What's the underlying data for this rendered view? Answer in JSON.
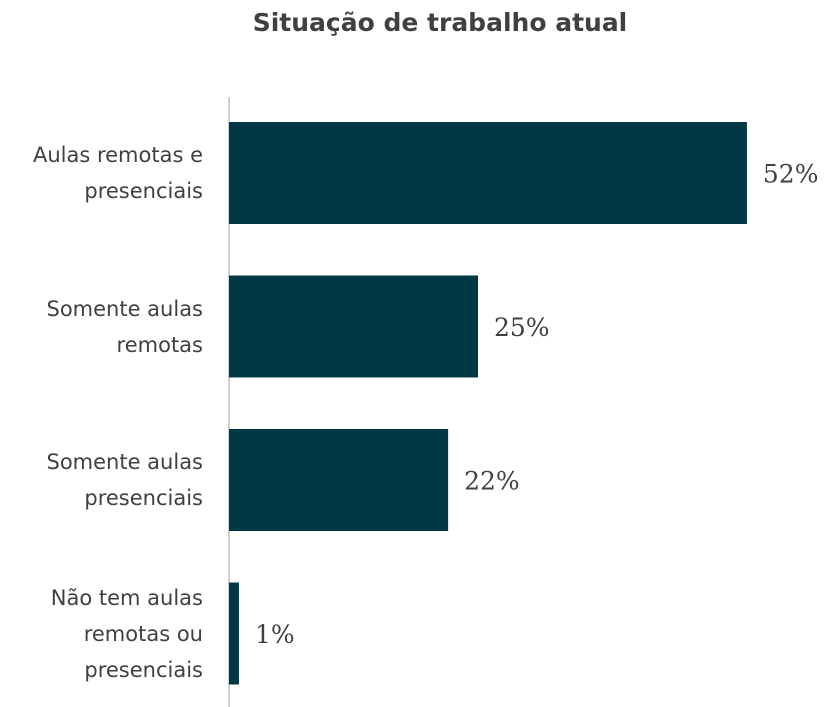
{
  "chart_data": {
    "type": "bar",
    "orientation": "horizontal",
    "title": "Situação de trabalho atual",
    "categories": [
      "Aulas remotas e presenciais",
      "Somente aulas remotas",
      "Somente aulas presenciais",
      "Não tem aulas remotas ou presenciais"
    ],
    "values": [
      52,
      25,
      22,
      1
    ],
    "value_labels": [
      "52%",
      "25%",
      "22%",
      "1%"
    ],
    "color": "#003846"
  }
}
